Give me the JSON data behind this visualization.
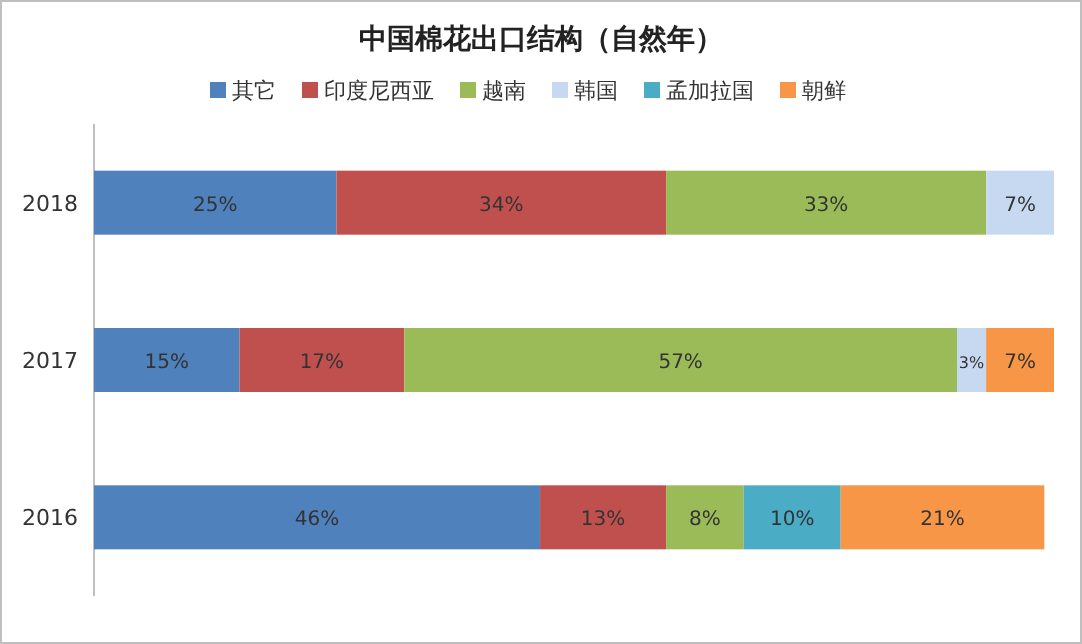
{
  "chart_data": {
    "type": "bar",
    "orientation": "horizontal",
    "stacked": true,
    "title": "中国棉花出口结构（自然年）",
    "categories": [
      "2018",
      "2017",
      "2016"
    ],
    "tick_labels": "y",
    "legend": "top",
    "series": [
      {
        "name": "其它",
        "color": "#4f81bd",
        "values": [
          25,
          15,
          46
        ],
        "value_labels": [
          "25%",
          "15%",
          "46%"
        ]
      },
      {
        "name": "印度尼西亚",
        "color": "#c0504d",
        "values": [
          34,
          17,
          13
        ],
        "value_labels": [
          "34%",
          "17%",
          "13%"
        ]
      },
      {
        "name": "越南",
        "color": "#9bbb59",
        "values": [
          33,
          57,
          8
        ],
        "value_labels": [
          "33%",
          "57%",
          "8%"
        ]
      },
      {
        "name": "韩国",
        "color": "#c6d9f1",
        "values": [
          7,
          3,
          null
        ],
        "value_labels": [
          "7%",
          "3%",
          null
        ]
      },
      {
        "name": "孟加拉国",
        "color": "#4bacc6",
        "values": [
          null,
          null,
          10
        ],
        "value_labels": [
          null,
          null,
          "10%"
        ]
      },
      {
        "name": "朝鲜",
        "color": "#f79646",
        "values": [
          null,
          7,
          21
        ],
        "value_labels": [
          null,
          "7%",
          "21%"
        ]
      }
    ]
  }
}
